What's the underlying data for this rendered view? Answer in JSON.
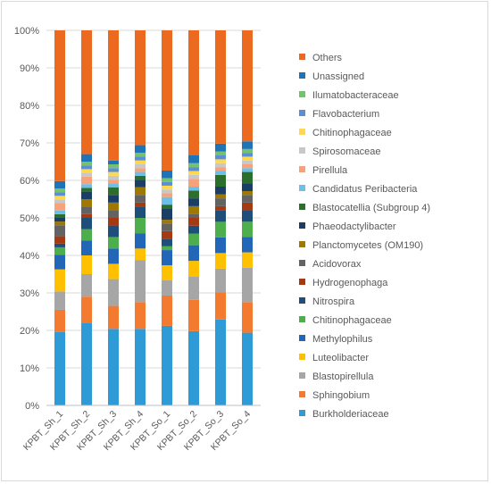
{
  "chart_data": {
    "type": "bar",
    "stacked": true,
    "percent_stacked": true,
    "categories": [
      "KPBT_Sh_1",
      "KPBT_Sh_2",
      "KPBT_Sh_3",
      "KPBT_Sh_4",
      "KPBT_So_1",
      "KPBT_So_2",
      "KPBT_So_3",
      "KPBT_So_4"
    ],
    "ylim": [
      0,
      100
    ],
    "yticks": [
      "0%",
      "10%",
      "20%",
      "30%",
      "40%",
      "50%",
      "60%",
      "70%",
      "80%",
      "90%",
      "100%"
    ],
    "grid": true,
    "legend_position": "right",
    "series": [
      {
        "name": "Burkholderiaceae",
        "color": "#2E9BD6",
        "values": [
          20,
          22,
          20,
          20,
          21,
          19,
          22,
          19
        ]
      },
      {
        "name": "Sphingobium",
        "color": "#F47A30",
        "values": [
          6,
          7,
          6,
          7,
          8,
          8,
          7,
          8
        ]
      },
      {
        "name": "Blastopirellula",
        "color": "#A6A6A6",
        "values": [
          5,
          6,
          7,
          11,
          4,
          6,
          6,
          9
        ]
      },
      {
        "name": "Luteolibacter",
        "color": "#FFC000",
        "values": [
          6,
          5,
          4,
          3,
          4,
          4,
          4,
          4
        ]
      },
      {
        "name": "Methylophilus",
        "color": "#2266B8",
        "values": [
          4,
          4,
          4,
          4,
          4,
          4,
          4,
          4
        ]
      },
      {
        "name": "Chitinophagaceae",
        "color": "#4CAF4C",
        "values": [
          2,
          3,
          3,
          4,
          1,
          3,
          4,
          4
        ]
      },
      {
        "name": "Nitrospira",
        "color": "#1E4E7A",
        "values": [
          1,
          3,
          3,
          3,
          2,
          2,
          3,
          3
        ]
      },
      {
        "name": "Hydrogenophaga",
        "color": "#A53A12",
        "values": [
          2,
          1,
          2,
          1,
          2,
          2,
          1,
          2
        ]
      },
      {
        "name": "Acidovorax",
        "color": "#636363",
        "values": [
          3,
          2,
          2,
          2,
          2,
          1,
          2,
          2
        ]
      },
      {
        "name": "Planctomycetes (OM190)",
        "color": "#9E7800",
        "values": [
          1,
          2,
          2,
          2,
          1,
          2,
          1,
          1
        ]
      },
      {
        "name": "Phaeodactylibacter",
        "color": "#1B3E66",
        "values": [
          1,
          2,
          2,
          2,
          3,
          2,
          2,
          2
        ]
      },
      {
        "name": "Blastocatellia (Subgroup 4)",
        "color": "#2C6E2C",
        "values": [
          1,
          1,
          2,
          1,
          1,
          2,
          3,
          3
        ]
      },
      {
        "name": "Candidatus Peribacteria",
        "color": "#6CC0E8",
        "values": [
          1,
          1,
          1,
          1,
          2,
          1,
          1,
          1
        ]
      },
      {
        "name": "Pirellula",
        "color": "#F7A27A",
        "values": [
          2,
          2,
          1,
          1,
          1,
          2,
          1,
          1
        ]
      },
      {
        "name": "Spirosomaceae",
        "color": "#C8C8C8",
        "values": [
          1,
          1,
          1,
          1,
          1,
          1,
          1,
          1
        ]
      },
      {
        "name": "Chitinophagaceae",
        "color": "#FFD84D",
        "values": [
          1,
          1,
          1,
          1,
          1,
          1,
          1,
          1
        ]
      },
      {
        "name": "Flavobacterium",
        "color": "#5A8FD6",
        "values": [
          1,
          1,
          1,
          1,
          1,
          1,
          1,
          1
        ]
      },
      {
        "name": "Ilumatobacteraceae",
        "color": "#74C16E",
        "values": [
          1,
          1,
          1,
          1,
          1,
          1,
          1,
          1
        ]
      },
      {
        "name": "Unassigned",
        "color": "#1F74B8",
        "values": [
          2,
          2,
          1,
          2,
          2,
          2,
          2,
          2
        ]
      },
      {
        "name": "Others",
        "color": "#EC6A1F",
        "values": [
          41,
          33,
          34,
          30,
          37,
          32,
          29,
          29
        ]
      }
    ]
  }
}
